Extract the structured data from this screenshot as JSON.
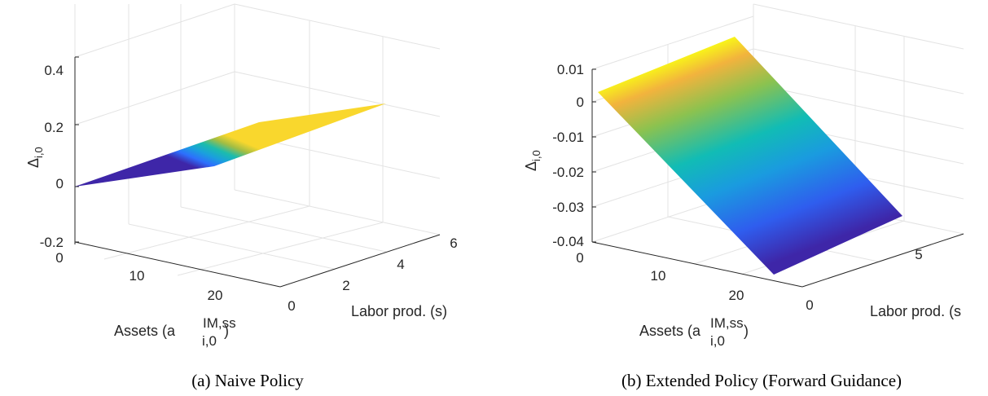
{
  "panels": [
    {
      "caption": "(a) Naive Policy",
      "xlabel": "Assets (a",
      "xlabel_sup": "IM,ss",
      "xlabel_sub": "i,0",
      "xlabel_close": ")",
      "ylabel": "Labor prod. (s)",
      "zlabel": "Δ",
      "zlabel_sub": "i,0",
      "x_ticks": [
        "0",
        "10",
        "20"
      ],
      "y_ticks": [
        "0",
        "2",
        "4",
        "6"
      ],
      "z_ticks": [
        "0.4",
        "0.2",
        "0",
        "-0.2"
      ]
    },
    {
      "caption": "(b) Extended Policy (Forward Guidance)",
      "xlabel": "Assets (a",
      "xlabel_sup": "IM,ss",
      "xlabel_sub": "i,0",
      "xlabel_close": ")",
      "ylabel": "Labor prod. (s",
      "zlabel": "Δ",
      "zlabel_sub": "i,0",
      "x_ticks": [
        "0",
        "10",
        "20"
      ],
      "y_ticks": [
        "0",
        "5"
      ],
      "z_ticks": [
        "0.01",
        "0",
        "-0.01",
        "-0.02",
        "-0.03",
        "-0.04"
      ]
    }
  ],
  "chart_data": [
    {
      "type": "surface",
      "title": "(a) Naive Policy",
      "xlabel": "Assets (a_{i,0}^{IM,ss})",
      "ylabel": "Labor prod. (s)",
      "zlabel": "Δ_{i,0}",
      "xlim": [
        0,
        27
      ],
      "ylim": [
        0,
        6.5
      ],
      "zlim": [
        -0.2,
        0.4
      ],
      "colormap": "parula",
      "grid": true,
      "corners": [
        {
          "x": 0,
          "y": 0,
          "z": 0.0
        },
        {
          "x": 27,
          "y": 0,
          "z": 0.08
        },
        {
          "x": 27,
          "y": 6.5,
          "z": 0.26
        },
        {
          "x": 0,
          "y": 6.5,
          "z": 0.0
        }
      ]
    },
    {
      "type": "surface",
      "title": "(b) Extended Policy (Forward Guidance)",
      "xlabel": "Assets (a_{i,0}^{IM,ss})",
      "ylabel": "Labor prod. (s)",
      "zlabel": "Δ_{i,0}",
      "xlim": [
        0,
        27
      ],
      "ylim": [
        0,
        7
      ],
      "zlim": [
        -0.04,
        0.015
      ],
      "colormap": "parula",
      "grid": true,
      "corners": [
        {
          "x": 0,
          "y": 0,
          "z": 0.003
        },
        {
          "x": 27,
          "y": 0,
          "z": -0.0445
        },
        {
          "x": 27,
          "y": 7,
          "z": -0.034
        },
        {
          "x": 0,
          "y": 7,
          "z": 0.0155
        }
      ]
    }
  ]
}
